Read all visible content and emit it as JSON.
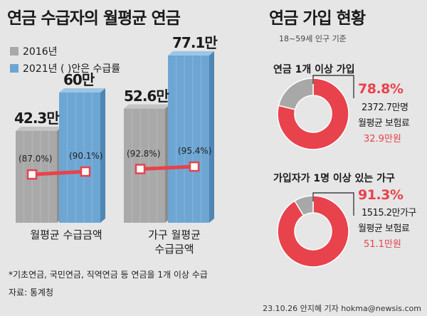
{
  "left": {
    "title": "연금 수급자의 월평균 연금",
    "legend": [
      {
        "label": "2016년",
        "color": "#a9a9a9"
      },
      {
        "label": "2021년 ( )안은 수급률",
        "color": "#6ea6d3"
      }
    ],
    "footnote": "*기초연금, 국민연금, 직역연금 등 연금을 1개 이상 수급",
    "source": "자료: 통계청"
  },
  "right": {
    "title": "연금 가입 현황",
    "subtitle": "18~59세 인구 기준",
    "donuts": [
      {
        "title": "연금 1개 이상 가입",
        "percent_label": "78.8%",
        "percent": 78.8,
        "count": "2372.7만명",
        "premium_label": "월평균 보험료",
        "premium": "32.9만원"
      },
      {
        "title": "가입자가 1명 이상 있는 가구",
        "percent_label": "91.3%",
        "percent": 91.3,
        "count": "1515.2만가구",
        "premium_label": "월평균 보험료",
        "premium": "51.1만원"
      }
    ]
  },
  "credit": "23.10.26 안지혜 기자 hokma@newsis.com",
  "chart_data": [
    {
      "type": "bar",
      "title": "연금 수급자의 월평균 연금",
      "categories": [
        "월평균 수급금액",
        "가구 월평균 수급금액"
      ],
      "category_lines": [
        [
          "월평균 수급금액"
        ],
        [
          "가구 월평균",
          "수급금액"
        ]
      ],
      "series": [
        {
          "name": "2016년",
          "values": [
            42.3,
            52.6
          ],
          "labels": [
            "42.3만",
            "52.6만"
          ]
        },
        {
          "name": "2021년",
          "values": [
            60,
            77.1
          ],
          "labels": [
            "60만",
            "77.1만"
          ]
        }
      ],
      "rate_series": {
        "name": "수급률",
        "values": [
          [
            87.0,
            90.1
          ],
          [
            92.8,
            95.4
          ]
        ],
        "labels": [
          [
            "(87.0%)",
            "(90.1%)"
          ],
          [
            "(92.8%)",
            "(95.4%)"
          ]
        ]
      },
      "ylim": [
        0,
        80
      ],
      "colors": {
        "s2016": "#a9a9a9",
        "s2021": "#6ea6d3",
        "rate_line": "#e8424c"
      }
    },
    {
      "type": "pie",
      "title": "연금 1개 이상 가입",
      "values": [
        78.8,
        21.2
      ],
      "colors": [
        "#e8424c",
        "#a8a8a8"
      ]
    },
    {
      "type": "pie",
      "title": "가입자가 1명 이상 있는 가구",
      "values": [
        91.3,
        8.7
      ],
      "colors": [
        "#e8424c",
        "#a8a8a8"
      ]
    }
  ]
}
